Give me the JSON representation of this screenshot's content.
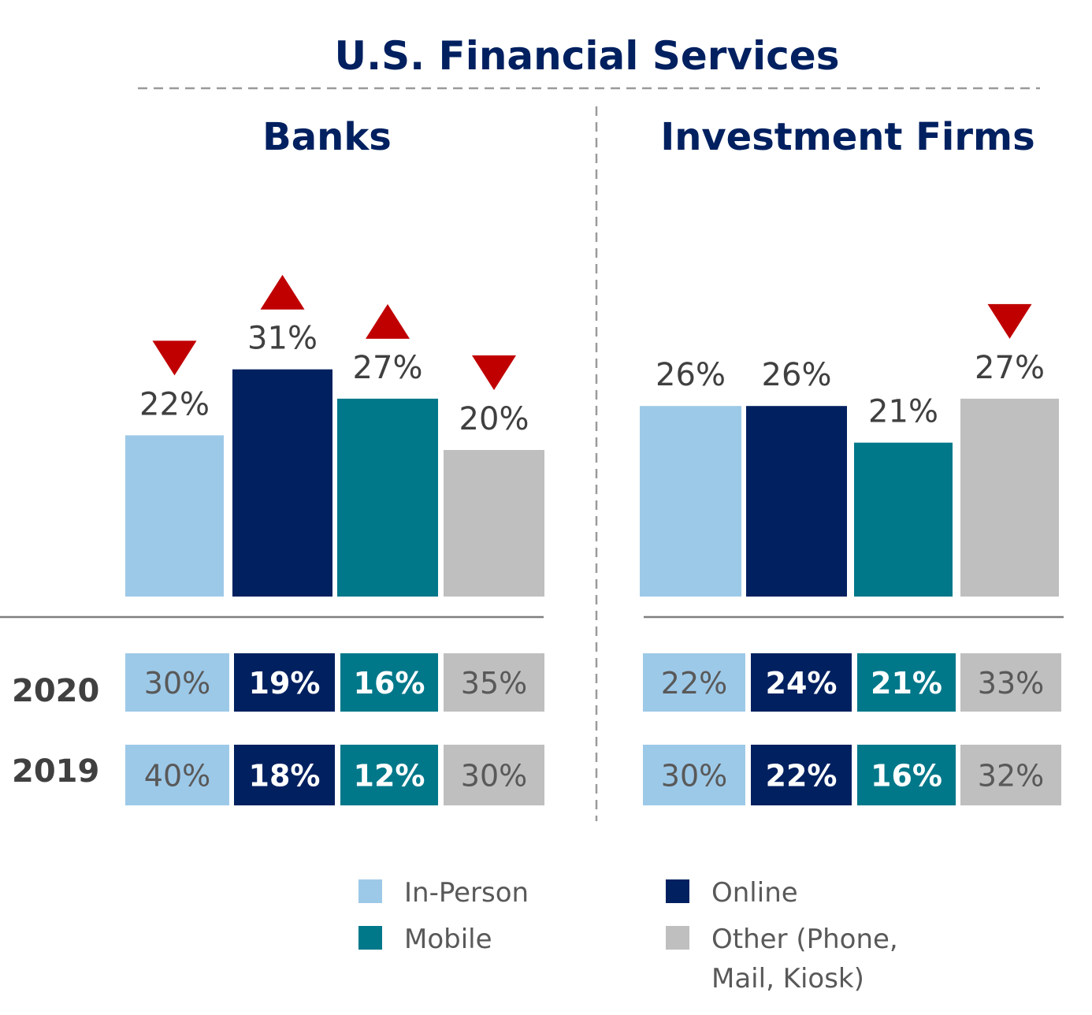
{
  "chart_data": {
    "type": "bar",
    "title": "U.S. Financial Services",
    "categories": [
      "In-Person",
      "Online",
      "Mobile",
      "Other (Phone, Mail, Kiosk)"
    ],
    "colors": {
      "In-Person": "#9dc9e8",
      "Online": "#002060",
      "Mobile": "#00788a",
      "Other (Phone, Mail, Kiosk)": "#bfbfbf",
      "trend": "#c00000",
      "title": "#002060",
      "label": "#404040"
    },
    "panels": [
      {
        "name": "Banks",
        "values": [
          22,
          31,
          27,
          20
        ],
        "value_labels": [
          "22%",
          "31%",
          "27%",
          "20%"
        ],
        "trend": [
          "down",
          "up",
          "up",
          "down"
        ],
        "table": [
          {
            "year": "2020",
            "cells": [
              "30%",
              "19%",
              "16%",
              "35%"
            ]
          },
          {
            "year": "2019",
            "cells": [
              "40%",
              "18%",
              "12%",
              "30%"
            ]
          }
        ]
      },
      {
        "name": "Investment Firms",
        "values": [
          26,
          26,
          21,
          27
        ],
        "value_labels": [
          "26%",
          "26%",
          "21%",
          "27%"
        ],
        "trend": [
          "none",
          "none",
          "none",
          "down"
        ],
        "table": [
          {
            "year": "2020",
            "cells": [
              "22%",
              "24%",
              "21%",
              "33%"
            ]
          },
          {
            "year": "2019",
            "cells": [
              "30%",
              "22%",
              "16%",
              "32%"
            ]
          }
        ]
      }
    ],
    "legend": [
      {
        "label": "In-Person",
        "color": "#9dc9e8"
      },
      {
        "label": "Online",
        "color": "#002060"
      },
      {
        "label": "Mobile",
        "color": "#00788a"
      },
      {
        "label": "Other (Phone, Mail, Kiosk)",
        "label_lines": [
          "Other (Phone,",
          "Mail, Kiosk)"
        ],
        "color": "#bfbfbf"
      }
    ],
    "legend_placement": "bottom"
  }
}
